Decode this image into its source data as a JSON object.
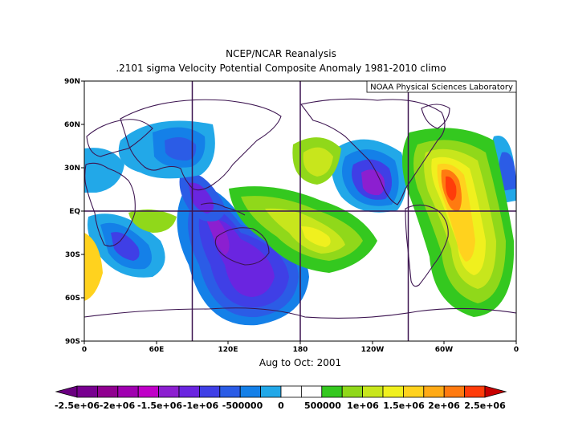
{
  "title_line1": "NCEP/NCAR Reanalysis",
  "title_line2": ".2101 sigma Velocity Potential  Composite Anomaly 1981-2010 climo",
  "credit": "NOAA Physical Sciences Laboratory",
  "subtitle": "Aug to Oct: 2001",
  "lat_labels": [
    "90N",
    "60N",
    "30N",
    "EQ",
    "30S",
    "60S",
    "90S"
  ],
  "lon_labels": [
    "0",
    "60E",
    "120E",
    "180",
    "120W",
    "60W",
    "0"
  ],
  "colorbar": {
    "labels": [
      "-2.5e+06",
      "-2e+06",
      "-1.5e+06",
      "-1e+06",
      "-500000",
      "0",
      "500000",
      "1e+06",
      "1.5e+06",
      "2e+06",
      "2.5e+06"
    ],
    "colors": [
      "#780090",
      "#900090",
      "#a000b0",
      "#c000c8",
      "#8c1fd0",
      "#6a25e0",
      "#3f3fe6",
      "#2b5ce6",
      "#1480e8",
      "#22a8e8",
      "#ffffff",
      "#ffffff",
      "#34c81f",
      "#90d81a",
      "#c8e61c",
      "#f0f01e",
      "#ffd21e",
      "#ffaa16",
      "#ff7a10",
      "#ff3c0a"
    ],
    "under_color": "#6a0080",
    "over_color": "#c80000"
  },
  "map_data": {
    "projection": "cylindrical equidistant, 0 to 360 E",
    "lat_range": [
      -90,
      90
    ],
    "lon_range": [
      0,
      360
    ],
    "reference_lines": {
      "lon": [
        90,
        180,
        270
      ],
      "lat": [
        0
      ]
    },
    "colors": {
      "coast": "#3c1450",
      "frame": "#000000"
    },
    "anomaly_centers": [
      {
        "sign": "negative",
        "lon": 150,
        "lat": -35,
        "level": 6
      },
      {
        "sign": "negative",
        "lon": 110,
        "lat": 0,
        "level": 6
      },
      {
        "sign": "negative",
        "lon": 235,
        "lat": 20,
        "level": 7
      },
      {
        "sign": "negative",
        "lon": 45,
        "lat": 50,
        "level": 4
      },
      {
        "sign": "negative",
        "lon": 355,
        "lat": 25,
        "level": 3
      },
      {
        "sign": "negative",
        "lon": 30,
        "lat": -30,
        "level": 3
      },
      {
        "sign": "positive",
        "lon": 290,
        "lat": 15,
        "level": 8
      },
      {
        "sign": "positive",
        "lon": 305,
        "lat": -30,
        "level": 6
      },
      {
        "sign": "positive",
        "lon": 200,
        "lat": -20,
        "level": 3
      },
      {
        "sign": "positive",
        "lon": 200,
        "lat": 40,
        "level": 4
      }
    ]
  }
}
